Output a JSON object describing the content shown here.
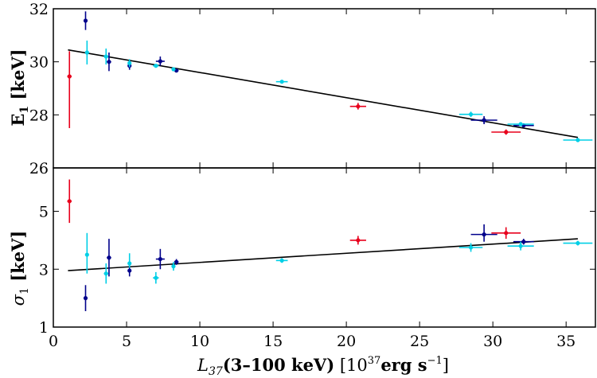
{
  "chart_data": [
    {
      "type": "scatter",
      "panel": "top",
      "ylabel": "E1 [keV]",
      "ylabel_main": "E",
      "ylabel_sub": "1",
      "ylabel_unit": " [keV]",
      "xlim": [
        0,
        37
      ],
      "ylim": [
        26,
        32
      ],
      "xticks": [
        0,
        5,
        10,
        15,
        20,
        25,
        30,
        35
      ],
      "yticks": [
        26,
        28,
        30,
        32
      ],
      "ytick_labels": [
        "26",
        "28",
        "30",
        "32"
      ],
      "fit_line": {
        "x": [
          1.0,
          35.8
        ],
        "y": [
          30.45,
          27.15
        ]
      },
      "series": [
        {
          "color": "#e8001c",
          "points": [
            {
              "x": 1.1,
              "y": 29.45,
              "xerr": 0.15,
              "ylo": 27.5,
              "yhi": 30.4
            },
            {
              "x": 20.8,
              "y": 28.32,
              "xerr": 0.55,
              "ylo": 28.2,
              "yhi": 28.45
            },
            {
              "x": 30.9,
              "y": 27.35,
              "xerr": 1.0,
              "ylo": 27.25,
              "yhi": 27.45
            }
          ]
        },
        {
          "color": "#00008b",
          "points": [
            {
              "x": 2.2,
              "y": 31.55,
              "xerr": 0.1,
              "ylo": 31.2,
              "yhi": 31.9
            },
            {
              "x": 3.8,
              "y": 30.0,
              "xerr": 0.15,
              "ylo": 29.65,
              "yhi": 30.35
            },
            {
              "x": 5.2,
              "y": 29.85,
              "xerr": 0.1,
              "ylo": 29.7,
              "yhi": 30.0
            },
            {
              "x": 7.3,
              "y": 30.02,
              "xerr": 0.3,
              "ylo": 29.85,
              "yhi": 30.2
            },
            {
              "x": 8.4,
              "y": 29.67,
              "xerr": 0.15,
              "ylo": 29.62,
              "yhi": 29.73
            },
            {
              "x": 29.4,
              "y": 27.8,
              "xerr": 0.9,
              "ylo": 27.65,
              "yhi": 27.95
            },
            {
              "x": 32.1,
              "y": 27.6,
              "xerr": 0.7,
              "ylo": 27.55,
              "yhi": 27.68
            }
          ]
        },
        {
          "color": "#00cfe6",
          "points": [
            {
              "x": 2.3,
              "y": 30.35,
              "xerr": 0.1,
              "ylo": 29.9,
              "yhi": 30.8
            },
            {
              "x": 3.6,
              "y": 30.2,
              "xerr": 0.15,
              "ylo": 29.9,
              "yhi": 30.5
            },
            {
              "x": 5.2,
              "y": 29.95,
              "xerr": 0.1,
              "ylo": 29.8,
              "yhi": 30.1
            },
            {
              "x": 7.0,
              "y": 29.85,
              "xerr": 0.2,
              "ylo": 29.78,
              "yhi": 29.92
            },
            {
              "x": 8.2,
              "y": 29.72,
              "xerr": 0.1,
              "ylo": 29.68,
              "yhi": 29.76
            },
            {
              "x": 15.6,
              "y": 29.25,
              "xerr": 0.4,
              "ylo": 29.2,
              "yhi": 29.3
            },
            {
              "x": 28.5,
              "y": 28.02,
              "xerr": 0.8,
              "ylo": 27.92,
              "yhi": 28.12
            },
            {
              "x": 31.9,
              "y": 27.65,
              "xerr": 0.9,
              "ylo": 27.6,
              "yhi": 27.7
            },
            {
              "x": 35.8,
              "y": 27.05,
              "xerr": 1.0,
              "ylo": 27.02,
              "yhi": 27.08
            }
          ]
        }
      ]
    },
    {
      "type": "scatter",
      "panel": "bottom",
      "ylabel": "σ1 [keV]",
      "ylabel_main": "σ",
      "ylabel_sub": "1",
      "ylabel_unit": " [keV]",
      "xlabel": "L37(3–100 keV) [10^37 erg s^-1]",
      "xlabel_parts": {
        "L": "L",
        "L_sub": "37",
        "range": "(3–100 keV)",
        "bracket_open": " [10",
        "exp": "37",
        "erg": "erg s",
        "exp2": "−1",
        "bracket_close": "]"
      },
      "xlim": [
        0,
        37
      ],
      "ylim": [
        1,
        6.5
      ],
      "xticks": [
        0,
        5,
        10,
        15,
        20,
        25,
        30,
        35
      ],
      "xtick_labels": [
        "0",
        "5",
        "10",
        "15",
        "20",
        "25",
        "30",
        "35"
      ],
      "yticks": [
        1,
        3,
        5
      ],
      "ytick_labels": [
        "1",
        "3",
        "5"
      ],
      "fit_line": {
        "x": [
          1.0,
          35.8
        ],
        "y": [
          2.95,
          4.05
        ]
      },
      "series": [
        {
          "color": "#e8001c",
          "points": [
            {
              "x": 1.1,
              "y": 5.35,
              "xerr": 0.15,
              "ylo": 4.6,
              "yhi": 6.1
            },
            {
              "x": 20.8,
              "y": 4.0,
              "xerr": 0.55,
              "ylo": 3.85,
              "yhi": 4.15
            },
            {
              "x": 30.9,
              "y": 4.25,
              "xerr": 1.0,
              "ylo": 4.05,
              "yhi": 4.45
            }
          ]
        },
        {
          "color": "#00008b",
          "points": [
            {
              "x": 2.2,
              "y": 2.0,
              "xerr": 0.1,
              "ylo": 1.55,
              "yhi": 2.45
            },
            {
              "x": 3.8,
              "y": 3.4,
              "xerr": 0.15,
              "ylo": 2.75,
              "yhi": 4.05
            },
            {
              "x": 5.2,
              "y": 2.95,
              "xerr": 0.1,
              "ylo": 2.75,
              "yhi": 3.15
            },
            {
              "x": 7.3,
              "y": 3.35,
              "xerr": 0.3,
              "ylo": 3.0,
              "yhi": 3.7
            },
            {
              "x": 8.4,
              "y": 3.25,
              "xerr": 0.15,
              "ylo": 3.15,
              "yhi": 3.35
            },
            {
              "x": 29.4,
              "y": 4.2,
              "xerr": 0.9,
              "ylo": 3.95,
              "yhi": 4.55
            },
            {
              "x": 32.1,
              "y": 3.95,
              "xerr": 0.7,
              "ylo": 3.85,
              "yhi": 4.05
            }
          ]
        },
        {
          "color": "#00cfe6",
          "points": [
            {
              "x": 2.3,
              "y": 3.5,
              "xerr": 0.1,
              "ylo": 2.85,
              "yhi": 4.25
            },
            {
              "x": 3.6,
              "y": 2.85,
              "xerr": 0.15,
              "ylo": 2.5,
              "yhi": 3.2
            },
            {
              "x": 5.2,
              "y": 3.2,
              "xerr": 0.1,
              "ylo": 3.05,
              "yhi": 3.55
            },
            {
              "x": 7.0,
              "y": 2.7,
              "xerr": 0.2,
              "ylo": 2.5,
              "yhi": 2.9
            },
            {
              "x": 8.2,
              "y": 3.1,
              "xerr": 0.1,
              "ylo": 2.95,
              "yhi": 3.25
            },
            {
              "x": 15.6,
              "y": 3.3,
              "xerr": 0.4,
              "ylo": 3.22,
              "yhi": 3.38
            },
            {
              "x": 28.5,
              "y": 3.75,
              "xerr": 0.8,
              "ylo": 3.6,
              "yhi": 3.9
            },
            {
              "x": 31.9,
              "y": 3.8,
              "xerr": 0.9,
              "ylo": 3.65,
              "yhi": 3.95
            },
            {
              "x": 35.8,
              "y": 3.9,
              "xerr": 1.0,
              "ylo": 3.82,
              "yhi": 3.98
            }
          ]
        }
      ]
    }
  ]
}
